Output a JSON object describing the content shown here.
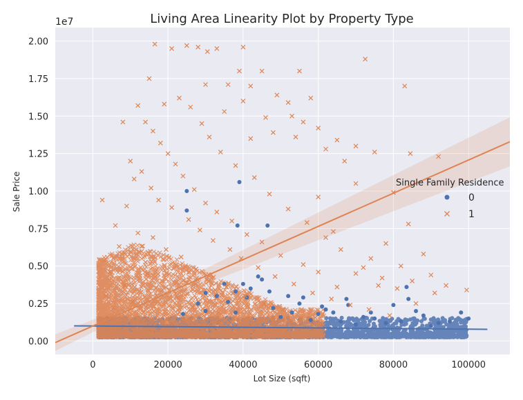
{
  "chart_data": {
    "type": "scatter",
    "title": "Living Area Linearity Plot by Property Type",
    "xlabel": "Lot Size (sqft)",
    "ylabel": "Sale Price",
    "y_offset_label": "1e7",
    "xlim": [
      -10000,
      111000
    ],
    "ylim": [
      -900000,
      20900000
    ],
    "x_ticks": [
      0,
      20000,
      40000,
      60000,
      80000,
      100000
    ],
    "x_tick_labels": [
      "0",
      "20000",
      "40000",
      "60000",
      "80000",
      "100000"
    ],
    "y_ticks": [
      0,
      2500000,
      5000000,
      7500000,
      10000000,
      12500000,
      15000000,
      17500000,
      20000000
    ],
    "y_tick_labels": [
      "0.00",
      "0.25",
      "0.50",
      "0.75",
      "1.00",
      "1.25",
      "1.50",
      "1.75",
      "2.00"
    ],
    "grid": true,
    "legend": {
      "title": "Single Family Residence",
      "placement": "center-right",
      "entries": [
        "0",
        "1"
      ]
    },
    "colors": {
      "series_0": "#4c72b0",
      "series_1": "#dd8452",
      "background": "#eaeaf2",
      "grid": "#ffffff"
    },
    "series": [
      {
        "name": "0",
        "marker": "circle",
        "regression": {
          "x_range": [
            -5000,
            105000
          ],
          "slope": -2.1,
          "intercept": 1000000
        },
        "points": [
          [
            25000,
            10000000
          ],
          [
            39000,
            10600000
          ],
          [
            25000,
            8700000
          ],
          [
            38500,
            7700000
          ],
          [
            46500,
            7700000
          ],
          [
            44000,
            4300000
          ],
          [
            38000,
            3300000
          ],
          [
            40000,
            3800000
          ],
          [
            30000,
            3200000
          ],
          [
            52000,
            3000000
          ],
          [
            56000,
            2900000
          ],
          [
            62000,
            2100000
          ],
          [
            67500,
            2800000
          ],
          [
            83500,
            3600000
          ],
          [
            100000,
            1500000
          ],
          [
            92000,
            1200000
          ],
          [
            80000,
            2400000
          ],
          [
            84000,
            2800000
          ],
          [
            72000,
            1600000
          ],
          [
            60000,
            1800000
          ],
          [
            48000,
            2200000
          ],
          [
            36000,
            2600000
          ],
          [
            28000,
            2500000
          ],
          [
            33000,
            3000000
          ],
          [
            42000,
            3500000
          ],
          [
            45000,
            4100000
          ],
          [
            55000,
            2500000
          ],
          [
            64000,
            1900000
          ],
          [
            68000,
            2400000
          ],
          [
            75000,
            1500000
          ],
          [
            88000,
            1700000
          ],
          [
            95000,
            1300000
          ],
          [
            98000,
            1900000
          ],
          [
            90000,
            1000000
          ],
          [
            86000,
            2000000
          ],
          [
            78000,
            1200000
          ],
          [
            70000,
            1100000
          ],
          [
            58000,
            1400000
          ],
          [
            50000,
            1600000
          ],
          [
            38000,
            1900000
          ],
          [
            30000,
            2000000
          ],
          [
            24000,
            1800000
          ],
          [
            35000,
            3800000
          ],
          [
            41000,
            2900000
          ],
          [
            47000,
            3300000
          ],
          [
            53000,
            1900000
          ],
          [
            61000,
            2300000
          ],
          [
            66000,
            1300000
          ],
          [
            74000,
            1900000
          ],
          [
            82000,
            1300000
          ]
        ]
      },
      {
        "name": "1",
        "marker": "x",
        "regression": {
          "x_range": [
            -10000,
            111000
          ],
          "slope": 110.7,
          "intercept": 1000000
        },
        "points": [
          [
            16500,
            19800000
          ],
          [
            25000,
            19700000
          ],
          [
            30500,
            19300000
          ],
          [
            33000,
            19500000
          ],
          [
            40000,
            19600000
          ],
          [
            28000,
            19600000
          ],
          [
            21000,
            19500000
          ],
          [
            72500,
            18800000
          ],
          [
            55000,
            18000000
          ],
          [
            45000,
            18000000
          ],
          [
            39000,
            18000000
          ],
          [
            83000,
            17000000
          ],
          [
            15000,
            17500000
          ],
          [
            30000,
            17100000
          ],
          [
            36000,
            17100000
          ],
          [
            42000,
            17000000
          ],
          [
            49000,
            16400000
          ],
          [
            52000,
            15900000
          ],
          [
            58000,
            16200000
          ],
          [
            40000,
            16000000
          ],
          [
            35000,
            15300000
          ],
          [
            46000,
            14900000
          ],
          [
            53000,
            15000000
          ],
          [
            56000,
            14600000
          ],
          [
            60000,
            14200000
          ],
          [
            65000,
            13400000
          ],
          [
            70000,
            13000000
          ],
          [
            75000,
            12600000
          ],
          [
            84500,
            12500000
          ],
          [
            92000,
            12300000
          ],
          [
            42000,
            13500000
          ],
          [
            48000,
            13900000
          ],
          [
            54000,
            13600000
          ],
          [
            62000,
            12800000
          ],
          [
            67000,
            12000000
          ],
          [
            60000,
            9600000
          ],
          [
            70000,
            10500000
          ],
          [
            80000,
            9900000
          ],
          [
            84000,
            7800000
          ],
          [
            78000,
            6500000
          ],
          [
            64000,
            7300000
          ],
          [
            74000,
            5500000
          ],
          [
            82000,
            5000000
          ],
          [
            88000,
            5800000
          ],
          [
            90000,
            4400000
          ],
          [
            85000,
            4000000
          ],
          [
            94000,
            3700000
          ],
          [
            99500,
            3400000
          ],
          [
            86000,
            2500000
          ],
          [
            91000,
            3200000
          ],
          [
            76000,
            3700000
          ],
          [
            70000,
            4500000
          ],
          [
            65000,
            3600000
          ],
          [
            60000,
            4600000
          ],
          [
            56000,
            5100000
          ],
          [
            50000,
            5700000
          ],
          [
            45000,
            6600000
          ],
          [
            41000,
            7100000
          ],
          [
            37000,
            8000000
          ],
          [
            33000,
            8600000
          ],
          [
            30000,
            9200000
          ],
          [
            27000,
            10100000
          ],
          [
            24000,
            11000000
          ],
          [
            22000,
            11800000
          ],
          [
            20000,
            12500000
          ],
          [
            18000,
            13200000
          ],
          [
            16000,
            14000000
          ],
          [
            14000,
            14600000
          ],
          [
            12000,
            15700000
          ],
          [
            19000,
            15800000
          ],
          [
            23000,
            16200000
          ],
          [
            26000,
            15600000
          ],
          [
            29000,
            14500000
          ],
          [
            31000,
            13600000
          ],
          [
            34000,
            12600000
          ],
          [
            38000,
            11700000
          ],
          [
            43000,
            10900000
          ],
          [
            47000,
            9800000
          ],
          [
            52000,
            8800000
          ],
          [
            57000,
            7900000
          ],
          [
            62000,
            6900000
          ],
          [
            66000,
            6100000
          ],
          [
            72000,
            4900000
          ],
          [
            77000,
            4200000
          ],
          [
            81000,
            3500000
          ],
          [
            8000,
            14600000
          ],
          [
            10000,
            12000000
          ],
          [
            11000,
            10800000
          ],
          [
            2500,
            9400000
          ],
          [
            6000,
            7700000
          ],
          [
            9000,
            9000000
          ],
          [
            13000,
            11300000
          ],
          [
            15500,
            10200000
          ],
          [
            17500,
            9400000
          ],
          [
            21000,
            8900000
          ],
          [
            25500,
            8100000
          ],
          [
            28500,
            7400000
          ],
          [
            32000,
            6700000
          ],
          [
            36500,
            6100000
          ],
          [
            39500,
            5500000
          ],
          [
            44000,
            4900000
          ],
          [
            48500,
            4300000
          ],
          [
            53500,
            3800000
          ],
          [
            58500,
            3200000
          ],
          [
            63500,
            2800000
          ],
          [
            68500,
            2400000
          ],
          [
            73500,
            2100000
          ],
          [
            79000,
            1700000
          ],
          [
            3000,
            5400000
          ],
          [
            4500,
            4600000
          ],
          [
            7000,
            6300000
          ],
          [
            12000,
            7200000
          ],
          [
            16000,
            6900000
          ],
          [
            19500,
            6100000
          ],
          [
            23500,
            5600000
          ],
          [
            27500,
            4800000
          ],
          [
            31500,
            4200000
          ],
          [
            35500,
            3600000
          ],
          [
            40500,
            3000000
          ],
          [
            45500,
            2500000
          ],
          [
            50500,
            2100000
          ],
          [
            55500,
            1700000
          ],
          [
            3500,
            3000000
          ],
          [
            5500,
            2200000
          ],
          [
            8500,
            3700000
          ],
          [
            14500,
            4500000
          ],
          [
            18500,
            3400000
          ],
          [
            22500,
            2900000
          ],
          [
            26500,
            2300000
          ],
          [
            33500,
            1900000
          ],
          [
            37500,
            1500000
          ],
          [
            2000,
            1200000
          ],
          [
            6500,
            1400000
          ],
          [
            10500,
            2600000
          ],
          [
            13500,
            1900000
          ]
        ]
      }
    ]
  }
}
